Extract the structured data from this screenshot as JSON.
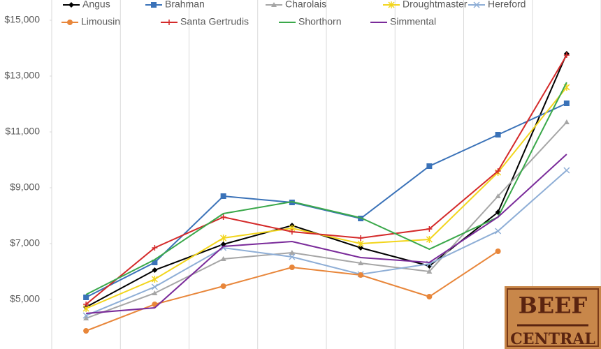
{
  "chart_data": {
    "type": "line",
    "categories": [
      null,
      null,
      null,
      null,
      null,
      null,
      null,
      null
    ],
    "ylim": [
      3250,
      15000
    ],
    "yticks": [
      {
        "value": 5000,
        "label": "$5,000"
      },
      {
        "value": 7000,
        "label": "$7,000"
      },
      {
        "value": 9000,
        "label": "$9,000"
      },
      {
        "value": 11000,
        "label": "$11,000"
      },
      {
        "value": 13000,
        "label": "$13,000"
      },
      {
        "value": 15000,
        "label": "$15,000"
      }
    ],
    "series": [
      {
        "name": "Angus",
        "color": "#000000",
        "marker": "diamond",
        "values": [
          4725,
          6050,
          6975,
          7650,
          6850,
          6200,
          8125,
          13800
        ]
      },
      {
        "name": "Brahman",
        "color": "#3a72b8",
        "marker": "square",
        "values": [
          5075,
          6325,
          8700,
          8475,
          7900,
          9775,
          10900,
          12025
        ]
      },
      {
        "name": "Charolais",
        "color": "#a6a6a6",
        "marker": "triangle",
        "values": [
          4325,
          5225,
          6450,
          6675,
          6300,
          6000,
          8700,
          11350
        ]
      },
      {
        "name": "Droughtmaster",
        "color": "#f2d51c",
        "marker": "star",
        "values": [
          4675,
          5725,
          7200,
          7550,
          7000,
          7150,
          9550,
          12600
        ]
      },
      {
        "name": "Hereford",
        "color": "#8eaed6",
        "marker": "x",
        "values": [
          4425,
          5450,
          6850,
          6525,
          5900,
          6275,
          7450,
          9625
        ]
      },
      {
        "name": "Limousin",
        "color": "#e8863a",
        "marker": "circle",
        "values": [
          3875,
          4825,
          5475,
          6150,
          5875,
          5100,
          6725,
          null
        ]
      },
      {
        "name": "Santa Gertrudis",
        "color": "#d42a2a",
        "marker": "plus",
        "values": [
          4825,
          6850,
          7950,
          7425,
          7200,
          7525,
          9600,
          13750
        ]
      },
      {
        "name": "Shorthorn",
        "color": "#3aa84a",
        "marker": "none",
        "values": [
          5175,
          6425,
          8075,
          8500,
          7925,
          6800,
          7950,
          12775
        ]
      },
      {
        "name": "Simmental",
        "color": "#7a2b9a",
        "marker": "none",
        "values": [
          4500,
          4700,
          6900,
          7075,
          6500,
          6325,
          7950,
          10200
        ]
      }
    ]
  },
  "logo": {
    "line1": "BEEF",
    "line2": "CENTRAL"
  }
}
